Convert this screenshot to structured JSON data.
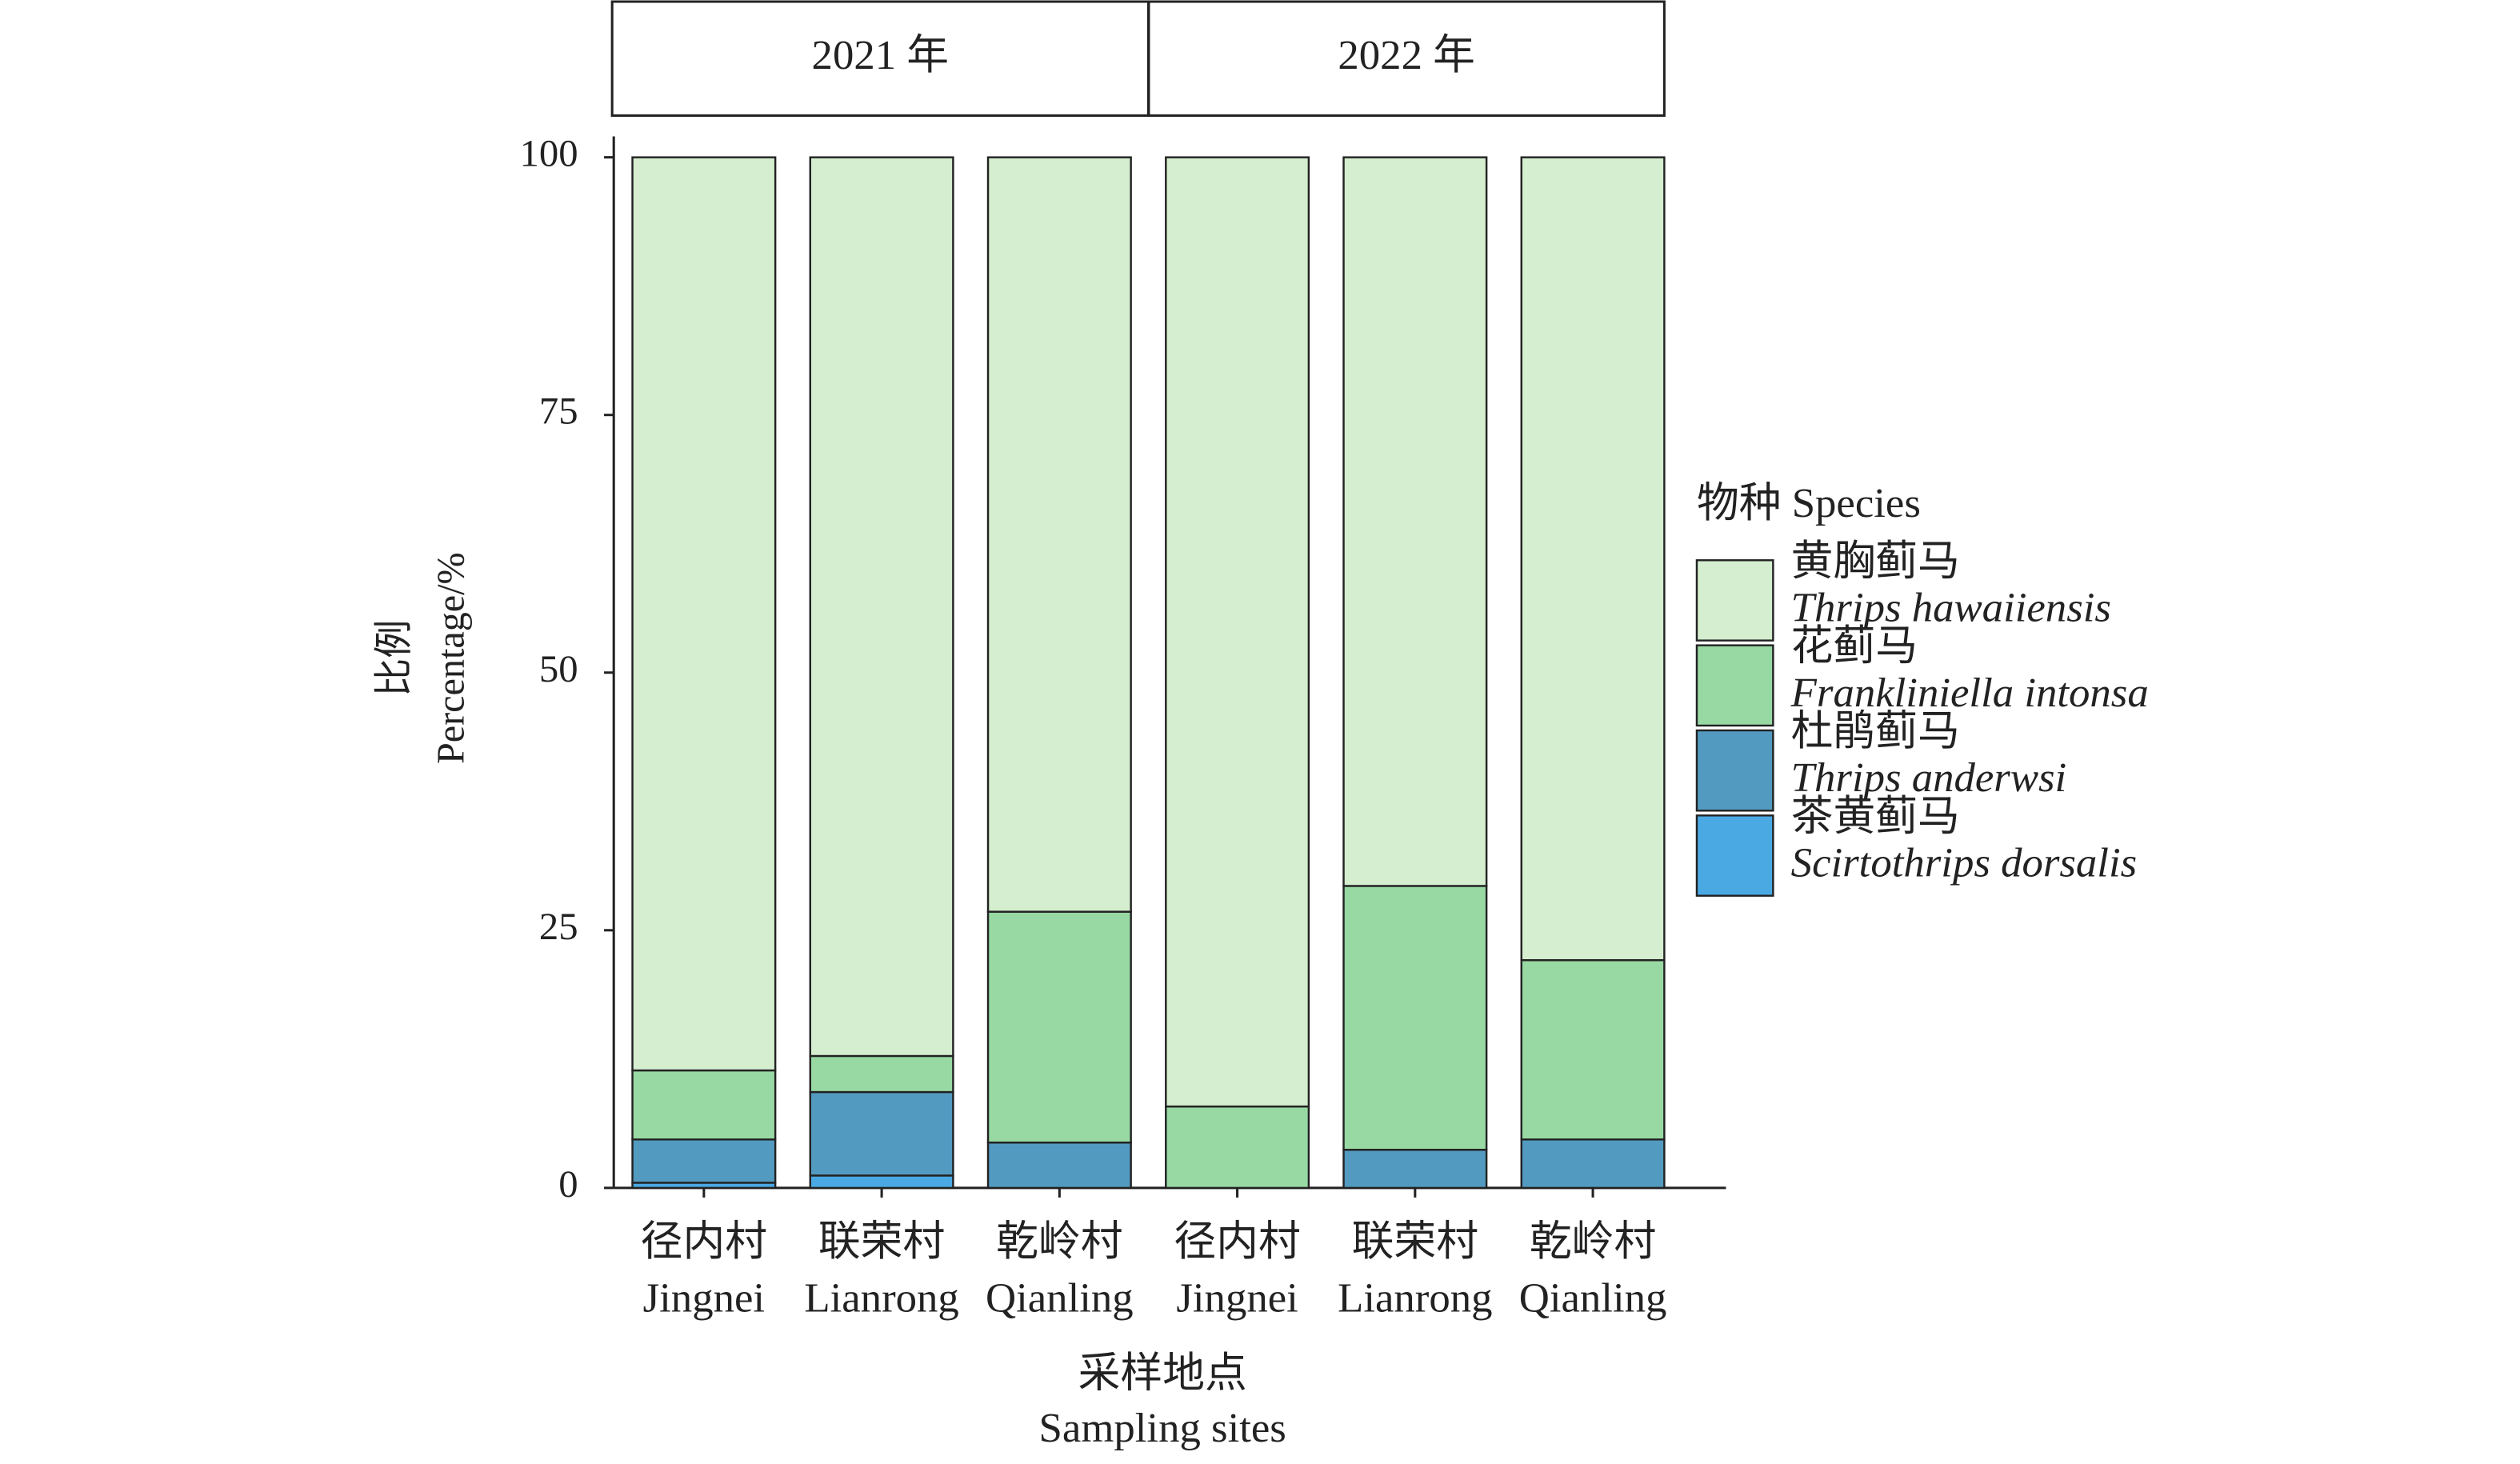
{
  "chart_data": {
    "type": "stacked_bar",
    "facets": [
      "2021 年",
      "2022 年"
    ],
    "categories": [
      "径内村",
      "联荣村",
      "乾岭村",
      "径内村",
      "联荣村",
      "乾岭村"
    ],
    "categories_en": [
      "Jingnei",
      "Lianrong",
      "Qianling",
      "Jingnei",
      "Lianrong",
      "Qianling"
    ],
    "ylabel": [
      "比例",
      "Percentage/%"
    ],
    "xlabel": [
      "采样地点",
      "Sampling sites"
    ],
    "legend_title": "物种 Species",
    "legend": "right",
    "ylim": [
      0,
      100
    ],
    "yticks": [
      0,
      25,
      50,
      75,
      100
    ],
    "series": [
      {
        "name": "茶黄蓟马",
        "name_en": "Scirtothrips dorsalis",
        "color": "#4aa9e3",
        "values": [
          0.5,
          1.2,
          0,
          0,
          0,
          0
        ]
      },
      {
        "name": "杜鹃蓟马",
        "name_en": "Thrips anderwsi",
        "color": "#539ac0",
        "values": [
          4.2,
          8.1,
          4.4,
          0,
          3.7,
          4.7
        ]
      },
      {
        "name": "花蓟马",
        "name_en": "Frankliniella intonsa",
        "color": "#98d9a3",
        "values": [
          6.7,
          3.5,
          22.4,
          7.9,
          25.6,
          17.4
        ]
      },
      {
        "name": "黄胸蓟马",
        "name_en": "Thrips hawaiiensis",
        "color": "#d4eecf",
        "values": [
          88.6,
          87.2,
          73.2,
          92.1,
          70.7,
          77.9
        ]
      }
    ]
  }
}
